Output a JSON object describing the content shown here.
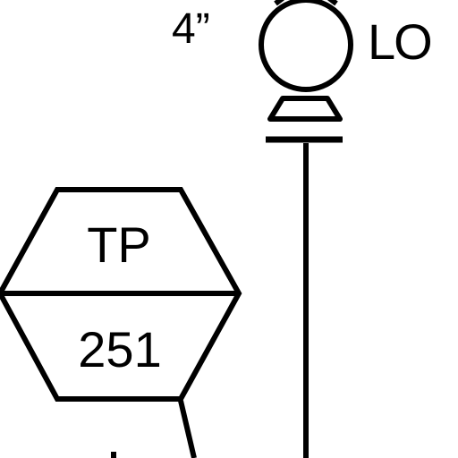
{
  "diagram": {
    "type": "P&ID fragment",
    "colors": {
      "stroke": "#000000",
      "background": "#ffffff"
    },
    "line_size": {
      "label": "4”"
    },
    "valve": {
      "icon": "ball-valve-icon",
      "position_label": "LO"
    },
    "instrument_tag": {
      "function_letters": "TP",
      "loop_number": "251"
    }
  }
}
